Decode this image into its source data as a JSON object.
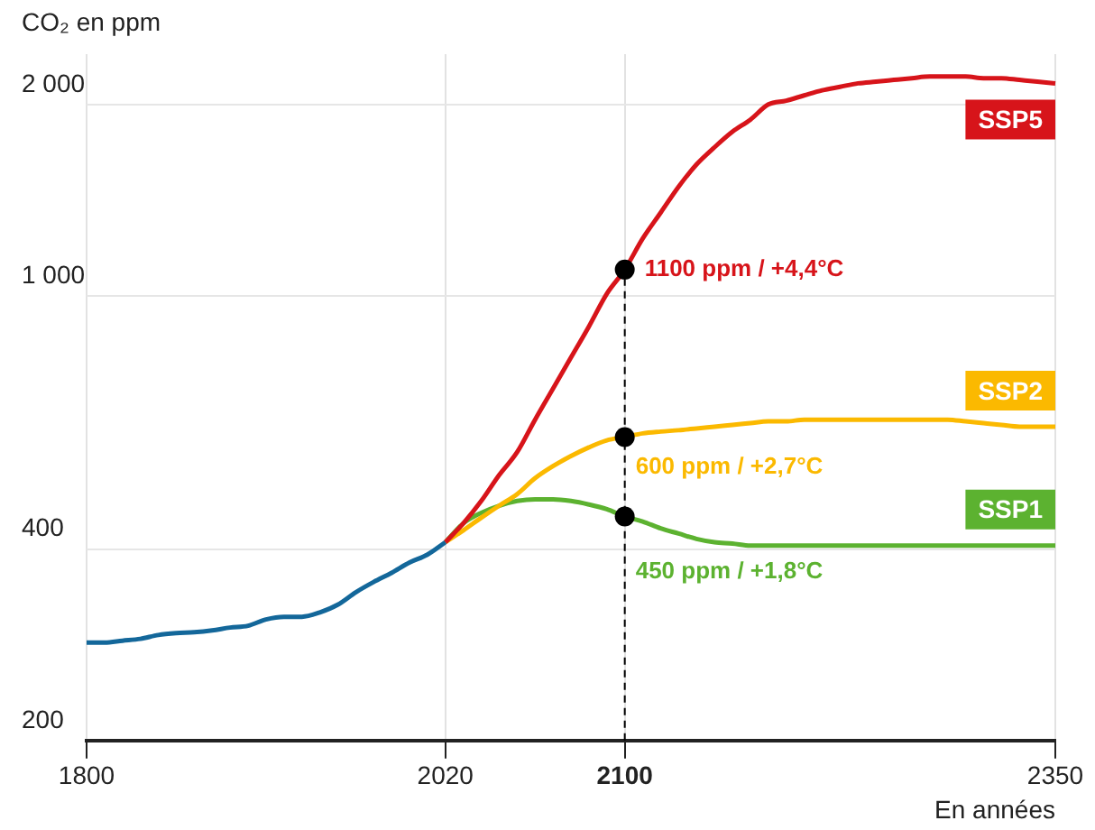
{
  "chart_data": {
    "type": "line",
    "ylabel": "CO₂ en ppm",
    "xlabel": "En années",
    "categories": [
      "1800",
      null,
      null,
      null,
      null,
      null,
      null,
      null,
      null,
      null,
      null,
      null,
      null,
      null,
      null,
      null,
      null,
      null,
      null,
      null,
      "2020",
      null,
      null,
      null,
      null,
      null,
      null,
      null,
      null,
      null,
      "2100",
      null,
      null,
      null,
      null,
      null,
      null,
      null,
      null,
      null,
      null,
      null,
      null,
      null,
      null,
      null,
      null,
      null,
      null,
      null,
      null,
      null,
      null,
      null,
      "2350"
    ],
    "log": "y",
    "ylim": [
      200,
      2400
    ],
    "yticks": [
      200,
      400,
      {
        "value": 1000,
        "label": "1 000"
      },
      {
        "value": 2000,
        "label": "2 000"
      }
    ],
    "grid": true,
    "legend": false,
    "marker": "none",
    "series": [
      {
        "color": "#13679a",
        "values": [
          285,
          285,
          287,
          289,
          293,
          295,
          296,
          298,
          301,
          303,
          310,
          313,
          313,
          318,
          327,
          342,
          355,
          367,
          381,
          392,
          410,
          null,
          null,
          null,
          null,
          null,
          null,
          null,
          null,
          null,
          null,
          null,
          null,
          null,
          null,
          null,
          null,
          null,
          null,
          null,
          null,
          null,
          null,
          null,
          null,
          null,
          null,
          null,
          null,
          null,
          null,
          null,
          null,
          null,
          null
        ]
      },
      {
        "name": "SSP5",
        "color": "#d7141a",
        "values": [
          null,
          null,
          null,
          null,
          null,
          null,
          null,
          null,
          null,
          null,
          null,
          null,
          null,
          null,
          null,
          null,
          null,
          null,
          null,
          null,
          410,
          439,
          476,
          523,
          568,
          639,
          715,
          800,
          895,
          1008,
          1100,
          1231,
          1352,
          1485,
          1610,
          1713,
          1812,
          1893,
          2000,
          2028,
          2067,
          2105,
          2132,
          2159,
          2172,
          2186,
          2200,
          2213,
          2213,
          2213,
          2200,
          2200,
          2186,
          2172,
          2159
        ]
      },
      {
        "name": "SSP2",
        "color": "#fbb900",
        "values": [
          null,
          null,
          null,
          null,
          null,
          null,
          null,
          null,
          null,
          null,
          null,
          null,
          null,
          null,
          null,
          null,
          null,
          null,
          null,
          null,
          410,
          428,
          448,
          468,
          488,
          517,
          540,
          560,
          578,
          593,
          600,
          608,
          612,
          615,
          619,
          623,
          627,
          631,
          635,
          635,
          639,
          639,
          639,
          639,
          639,
          639,
          639,
          639,
          639,
          635,
          631,
          627,
          623,
          623,
          623
        ]
      },
      {
        "name": "SSP1",
        "color": "#5cb230",
        "values": [
          null,
          null,
          null,
          null,
          null,
          null,
          null,
          null,
          null,
          null,
          null,
          null,
          null,
          null,
          null,
          null,
          null,
          null,
          null,
          null,
          410,
          439,
          456,
          468,
          476,
          479,
          479,
          476,
          470,
          462,
          450,
          442,
          431,
          423,
          415,
          410,
          408,
          405,
          405,
          405,
          405,
          405,
          405,
          405,
          405,
          405,
          405,
          405,
          405,
          405,
          405,
          405,
          405,
          405,
          405
        ]
      }
    ],
    "ref_lines": [
      {
        "axis": "x",
        "value": "2100",
        "line_style": "dashed",
        "color": "#000000"
      }
    ],
    "annotations": [
      {
        "text": "1100 ppm / +4,4°C",
        "x": "2100",
        "y": 1100
      },
      {
        "text": "600 ppm / +2,7°C",
        "x": "2100",
        "y": 600
      },
      {
        "text": "450 ppm / +1,8°C",
        "x": "2100",
        "y": 450
      }
    ]
  }
}
